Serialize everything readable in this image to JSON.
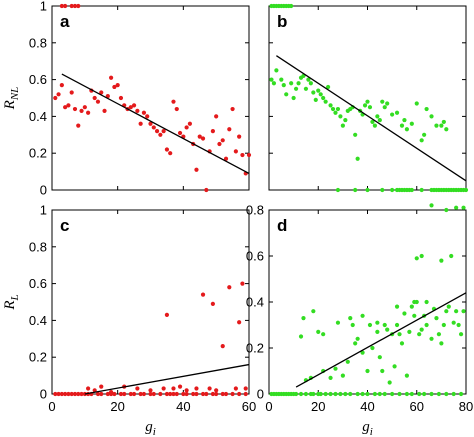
{
  "chart_data": [
    {
      "panel": "a",
      "type": "scatter",
      "ylabel": "R",
      "ylabel_sub": "NL",
      "xlabel": "",
      "xlim": [
        0,
        60
      ],
      "ylim": [
        0,
        1
      ],
      "xticks": [
        "0",
        "20",
        "40",
        "60"
      ],
      "yticks": [
        "0",
        "0.2",
        "0.4",
        "0.6",
        "0.8",
        "1"
      ],
      "show_xtick_labels": false,
      "show_ytick_labels": true,
      "color": "#e41a1c",
      "points": [
        [
          3,
          1
        ],
        [
          4,
          1
        ],
        [
          6,
          1
        ],
        [
          7,
          1
        ],
        [
          8,
          1
        ],
        [
          1,
          0.5
        ],
        [
          2,
          0.52
        ],
        [
          3,
          0.57
        ],
        [
          4,
          0.45
        ],
        [
          5,
          0.46
        ],
        [
          6,
          0.53
        ],
        [
          7,
          0.44
        ],
        [
          8,
          0.35
        ],
        [
          9,
          0.43
        ],
        [
          10,
          0.45
        ],
        [
          11,
          0.42
        ],
        [
          12,
          0.54
        ],
        [
          13,
          0.5
        ],
        [
          14,
          0.48
        ],
        [
          15,
          0.53
        ],
        [
          16,
          0.43
        ],
        [
          17,
          0.51
        ],
        [
          18,
          0.61
        ],
        [
          19,
          0.56
        ],
        [
          20,
          0.57
        ],
        [
          21,
          0.5
        ],
        [
          22,
          0.46
        ],
        [
          23,
          0.44
        ],
        [
          24,
          0.45
        ],
        [
          25,
          0.46
        ],
        [
          26,
          0.43
        ],
        [
          27,
          0.36
        ],
        [
          28,
          0.42
        ],
        [
          29,
          0.4
        ],
        [
          30,
          0.36
        ],
        [
          31,
          0.34
        ],
        [
          32,
          0.32
        ],
        [
          33,
          0.3
        ],
        [
          34,
          0.32
        ],
        [
          35,
          0.22
        ],
        [
          36,
          0.2
        ],
        [
          37,
          0.48
        ],
        [
          38,
          0.44
        ],
        [
          39,
          0.31
        ],
        [
          40,
          0.29
        ],
        [
          41,
          0.34
        ],
        [
          42,
          0.36
        ],
        [
          43,
          0.25
        ],
        [
          44,
          0.11
        ],
        [
          45,
          0.29
        ],
        [
          46,
          0.28
        ],
        [
          47,
          0.0
        ],
        [
          48,
          0.21
        ],
        [
          49,
          0.32
        ],
        [
          50,
          0.4
        ],
        [
          51,
          0.25
        ],
        [
          52,
          0.27
        ],
        [
          53,
          0.17
        ],
        [
          54,
          0.33
        ],
        [
          55,
          0.44
        ],
        [
          56,
          0.21
        ],
        [
          57,
          0.29
        ],
        [
          58,
          0.19
        ],
        [
          59,
          0.09
        ],
        [
          60,
          0.19
        ]
      ],
      "fit_line": [
        [
          3,
          0.63
        ],
        [
          60,
          0.09
        ]
      ]
    },
    {
      "panel": "b",
      "type": "scatter",
      "ylabel": "",
      "xlabel": "",
      "xlim": [
        0,
        80
      ],
      "ylim": [
        0,
        1
      ],
      "xticks": [
        "0",
        "20",
        "40",
        "60",
        "80"
      ],
      "yticks": [
        "0",
        "0.2",
        "0.4",
        "0.6",
        "0.8",
        "1"
      ],
      "show_xtick_labels": false,
      "show_ytick_labels": false,
      "color": "#33dd22",
      "points": [
        [
          1,
          1
        ],
        [
          2,
          1
        ],
        [
          3,
          1
        ],
        [
          4,
          1
        ],
        [
          5,
          1
        ],
        [
          6,
          1
        ],
        [
          7,
          1
        ],
        [
          8,
          1
        ],
        [
          9,
          1
        ],
        [
          1,
          0.6
        ],
        [
          2,
          0.58
        ],
        [
          3,
          0.65
        ],
        [
          5,
          0.6
        ],
        [
          6,
          0.57
        ],
        [
          7,
          0.52
        ],
        [
          9,
          0.58
        ],
        [
          10,
          0.5
        ],
        [
          11,
          0.55
        ],
        [
          12,
          0.58
        ],
        [
          13,
          0.61
        ],
        [
          14,
          0.62
        ],
        [
          15,
          0.55
        ],
        [
          16,
          0.6
        ],
        [
          17,
          0.58
        ],
        [
          18,
          0.53
        ],
        [
          19,
          0.49
        ],
        [
          20,
          0.54
        ],
        [
          21,
          0.52
        ],
        [
          22,
          0.5
        ],
        [
          23,
          0.48
        ],
        [
          24,
          0.56
        ],
        [
          25,
          0.46
        ],
        [
          26,
          0.44
        ],
        [
          27,
          0.42
        ],
        [
          28,
          0.44
        ],
        [
          29,
          0.4
        ],
        [
          30,
          0.35
        ],
        [
          31,
          0.38
        ],
        [
          32,
          0.43
        ],
        [
          33,
          0.44
        ],
        [
          34,
          0.45
        ],
        [
          35,
          0.3
        ],
        [
          36,
          0.17
        ],
        [
          37,
          0.43
        ],
        [
          38,
          0.41
        ],
        [
          39,
          0.46
        ],
        [
          40,
          0.48
        ],
        [
          41,
          0.45
        ],
        [
          42,
          0.37
        ],
        [
          43,
          0.35
        ],
        [
          44,
          0.4
        ],
        [
          45,
          0.38
        ],
        [
          46,
          0.48
        ],
        [
          47,
          0.45
        ],
        [
          48,
          0.47
        ],
        [
          50,
          0.41
        ],
        [
          52,
          0.42
        ],
        [
          54,
          0.35
        ],
        [
          55,
          0.38
        ],
        [
          56,
          0.33
        ],
        [
          58,
          0.36
        ],
        [
          60,
          0.47
        ],
        [
          62,
          0.27
        ],
        [
          63,
          0.3
        ],
        [
          64,
          0.44
        ],
        [
          66,
          0.4
        ],
        [
          68,
          0.35
        ],
        [
          70,
          0.35
        ],
        [
          71,
          0.37
        ],
        [
          72,
          0.33
        ],
        [
          28,
          0
        ],
        [
          35,
          0
        ],
        [
          40,
          0
        ],
        [
          46,
          0
        ],
        [
          50,
          0
        ],
        [
          52,
          0
        ],
        [
          53,
          0
        ],
        [
          54,
          0
        ],
        [
          55,
          0
        ],
        [
          56,
          0
        ],
        [
          57,
          0
        ],
        [
          58,
          0
        ],
        [
          62,
          0
        ],
        [
          66,
          0
        ],
        [
          67,
          0
        ],
        [
          68,
          0
        ],
        [
          69,
          0
        ],
        [
          70,
          0
        ],
        [
          71,
          0
        ],
        [
          72,
          0
        ],
        [
          73,
          0
        ],
        [
          74,
          0
        ],
        [
          75,
          0
        ],
        [
          76,
          0
        ],
        [
          77,
          0
        ],
        [
          78,
          0
        ],
        [
          79,
          0
        ],
        [
          80,
          0
        ]
      ],
      "fit_line": [
        [
          3,
          0.73
        ],
        [
          80,
          0.05
        ]
      ]
    },
    {
      "panel": "c",
      "type": "scatter",
      "ylabel": "R",
      "ylabel_sub": "L",
      "xlabel": "g",
      "xlabel_sub": "i",
      "xlim": [
        0,
        60
      ],
      "ylim": [
        0,
        1
      ],
      "xticks": [
        "0",
        "20",
        "40",
        "60"
      ],
      "yticks": [
        "0",
        "0.2",
        "0.4",
        "0.6",
        "0.8",
        "1"
      ],
      "show_xtick_labels": true,
      "show_ytick_labels": true,
      "color": "#e41a1c",
      "points": [
        [
          1,
          0
        ],
        [
          2,
          0
        ],
        [
          3,
          0
        ],
        [
          4,
          0
        ],
        [
          5,
          0
        ],
        [
          6,
          0
        ],
        [
          7,
          0
        ],
        [
          8,
          0
        ],
        [
          9,
          0
        ],
        [
          10,
          0
        ],
        [
          11,
          0
        ],
        [
          12,
          0
        ],
        [
          14,
          0
        ],
        [
          15,
          0
        ],
        [
          17,
          0
        ],
        [
          18,
          0
        ],
        [
          19,
          0
        ],
        [
          21,
          0
        ],
        [
          22,
          0
        ],
        [
          24,
          0
        ],
        [
          25,
          0
        ],
        [
          27,
          0
        ],
        [
          28,
          0
        ],
        [
          30,
          0
        ],
        [
          31,
          0
        ],
        [
          33,
          0
        ],
        [
          35,
          0
        ],
        [
          36,
          0
        ],
        [
          37,
          0
        ],
        [
          38,
          0
        ],
        [
          40,
          0
        ],
        [
          41,
          0
        ],
        [
          43,
          0
        ],
        [
          44,
          0
        ],
        [
          46,
          0
        ],
        [
          47,
          0
        ],
        [
          49,
          0
        ],
        [
          50,
          0
        ],
        [
          52,
          0
        ],
        [
          53,
          0
        ],
        [
          55,
          0
        ],
        [
          57,
          0
        ],
        [
          59,
          0
        ],
        [
          11,
          0.03
        ],
        [
          13,
          0.02
        ],
        [
          15,
          0.04
        ],
        [
          18,
          0.01
        ],
        [
          22,
          0.04
        ],
        [
          26,
          0.03
        ],
        [
          30,
          0.02
        ],
        [
          34,
          0.03
        ],
        [
          37,
          0.03
        ],
        [
          39,
          0.04
        ],
        [
          41,
          0.02
        ],
        [
          44,
          0.03
        ],
        [
          48,
          0.03
        ],
        [
          50,
          0.02
        ],
        [
          56,
          0.03
        ],
        [
          59,
          0.03
        ],
        [
          35,
          0.43
        ],
        [
          46,
          0.54
        ],
        [
          49,
          0.49
        ],
        [
          52,
          0.26
        ],
        [
          54,
          0.58
        ],
        [
          57,
          0.39
        ],
        [
          58,
          0.6
        ]
      ],
      "fit_line": [
        [
          10,
          0
        ],
        [
          60,
          0.16
        ]
      ]
    },
    {
      "panel": "d",
      "type": "scatter",
      "ylabel": "",
      "xlabel": "g",
      "xlabel_sub": "i",
      "xlim": [
        0,
        80
      ],
      "ylim": [
        0,
        0.8
      ],
      "xticks": [
        "0",
        "20",
        "40",
        "60",
        "80"
      ],
      "yticks": [
        "0",
        "0.2",
        "0.4",
        "0.6",
        "0.8"
      ],
      "show_xtick_labels": true,
      "show_ytick_labels": true,
      "color": "#33dd22",
      "points": [
        [
          1,
          0
        ],
        [
          2,
          0
        ],
        [
          3,
          0
        ],
        [
          4,
          0
        ],
        [
          5,
          0
        ],
        [
          6,
          0
        ],
        [
          7,
          0
        ],
        [
          8,
          0
        ],
        [
          9,
          0
        ],
        [
          10,
          0
        ],
        [
          11,
          0
        ],
        [
          13,
          0
        ],
        [
          15,
          0
        ],
        [
          17,
          0
        ],
        [
          18,
          0
        ],
        [
          20,
          0
        ],
        [
          21,
          0
        ],
        [
          23,
          0
        ],
        [
          25,
          0
        ],
        [
          27,
          0
        ],
        [
          29,
          0
        ],
        [
          31,
          0
        ],
        [
          33,
          0
        ],
        [
          36,
          0
        ],
        [
          38,
          0
        ],
        [
          40,
          0
        ],
        [
          43,
          0
        ],
        [
          45,
          0
        ],
        [
          47,
          0
        ],
        [
          50,
          0
        ],
        [
          53,
          0
        ],
        [
          56,
          0
        ],
        [
          58,
          0
        ],
        [
          61,
          0
        ],
        [
          63,
          0
        ],
        [
          66,
          0
        ],
        [
          69,
          0
        ],
        [
          72,
          0
        ],
        [
          75,
          0
        ],
        [
          78,
          0
        ],
        [
          13,
          0.25
        ],
        [
          15,
          0.06
        ],
        [
          17,
          0.07
        ],
        [
          20,
          0.27
        ],
        [
          22,
          0.1
        ],
        [
          25,
          0.07
        ],
        [
          27,
          0.11
        ],
        [
          30,
          0.08
        ],
        [
          32,
          0.14
        ],
        [
          34,
          0.3
        ],
        [
          35,
          0.22
        ],
        [
          36,
          0.24
        ],
        [
          38,
          0.18
        ],
        [
          40,
          0.1
        ],
        [
          41,
          0.3
        ],
        [
          42,
          0.2
        ],
        [
          44,
          0.27
        ],
        [
          45,
          0.16
        ],
        [
          46,
          0.1
        ],
        [
          47,
          0.3
        ],
        [
          48,
          0.28
        ],
        [
          49,
          0.05
        ],
        [
          50,
          0.26
        ],
        [
          51,
          0.12
        ],
        [
          52,
          0.3
        ],
        [
          53,
          0.26
        ],
        [
          54,
          0.22
        ],
        [
          55,
          0.35
        ],
        [
          56,
          0.08
        ],
        [
          57,
          0.27
        ],
        [
          58,
          0.38
        ],
        [
          59,
          0.34
        ],
        [
          60,
          0.4
        ],
        [
          61,
          0.26
        ],
        [
          62,
          0.28
        ],
        [
          63,
          0.34
        ],
        [
          64,
          0.4
        ],
        [
          66,
          0.24
        ],
        [
          67,
          0.37
        ],
        [
          68,
          0.33
        ],
        [
          69,
          0.26
        ],
        [
          70,
          0.22
        ],
        [
          71,
          0.3
        ],
        [
          72,
          0.36
        ],
        [
          73,
          0.38
        ],
        [
          75,
          0.31
        ],
        [
          76,
          0.36
        ],
        [
          77,
          0.3
        ],
        [
          78,
          0.26
        ],
        [
          79,
          0.36
        ],
        [
          14,
          0.33
        ],
        [
          18,
          0.36
        ],
        [
          22,
          0.26
        ],
        [
          28,
          0.31
        ],
        [
          33,
          0.33
        ],
        [
          38,
          0.34
        ],
        [
          44,
          0.31
        ],
        [
          52,
          0.38
        ],
        [
          59,
          0.4
        ],
        [
          64,
          0.3
        ],
        [
          60,
          0.59
        ],
        [
          62,
          0.6
        ],
        [
          70,
          0.58
        ],
        [
          66,
          0.82
        ],
        [
          72,
          0.8
        ],
        [
          76,
          0.81
        ],
        [
          79,
          0.81
        ],
        [
          74,
          0.6
        ]
      ],
      "fit_line": [
        [
          11,
          0.03
        ],
        [
          80,
          0.44
        ]
      ]
    }
  ]
}
